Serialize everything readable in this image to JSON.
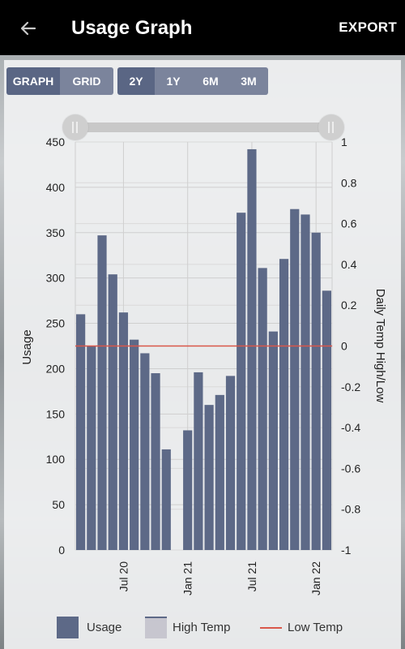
{
  "appbar": {
    "title": "Usage Graph",
    "export_label": "EXPORT",
    "back_icon": "arrow-left-icon"
  },
  "view_toggle": [
    "GRAPH",
    "GRID"
  ],
  "view_selected": "GRAPH",
  "range_toggle": [
    "2Y",
    "1Y",
    "6M",
    "3M"
  ],
  "range_selected": "2Y",
  "colors": {
    "bar": "#5d6987",
    "low_temp": "#d9574a",
    "high_temp": "#c7c6cf",
    "button": "#7b849c",
    "button_active": "#5a6684"
  },
  "legend": {
    "usage": "Usage",
    "high_temp": "High Temp",
    "low_temp": "Low Temp"
  },
  "chart_data": {
    "type": "bar",
    "ylabel": "Usage",
    "y2label": "Daily Temp High/Low",
    "ylim": [
      0,
      450
    ],
    "y2lim": [
      -1,
      1
    ],
    "yticks": [
      "0",
      "50",
      "100",
      "150",
      "200",
      "250",
      "300",
      "350",
      "400",
      "450"
    ],
    "y2ticks": [
      "-1",
      "-0.8",
      "-0.6",
      "-0.4",
      "-0.2",
      "0",
      "0.2",
      "0.4",
      "0.6",
      "0.8",
      "1"
    ],
    "x_tick_labels": [
      "Jul 20",
      "Jan 21",
      "Jul 21",
      "Jan 22"
    ],
    "x_tick_index": [
      4.5,
      10.5,
      16.5,
      22.5
    ],
    "values": [
      260,
      225,
      347,
      304,
      262,
      232,
      217,
      195,
      111,
      0,
      132,
      196,
      160,
      171,
      192,
      372,
      442,
      311,
      241,
      321,
      376,
      370,
      350,
      286
    ],
    "low_temp_value": 0,
    "grid": true,
    "legend_position": "bottom"
  }
}
